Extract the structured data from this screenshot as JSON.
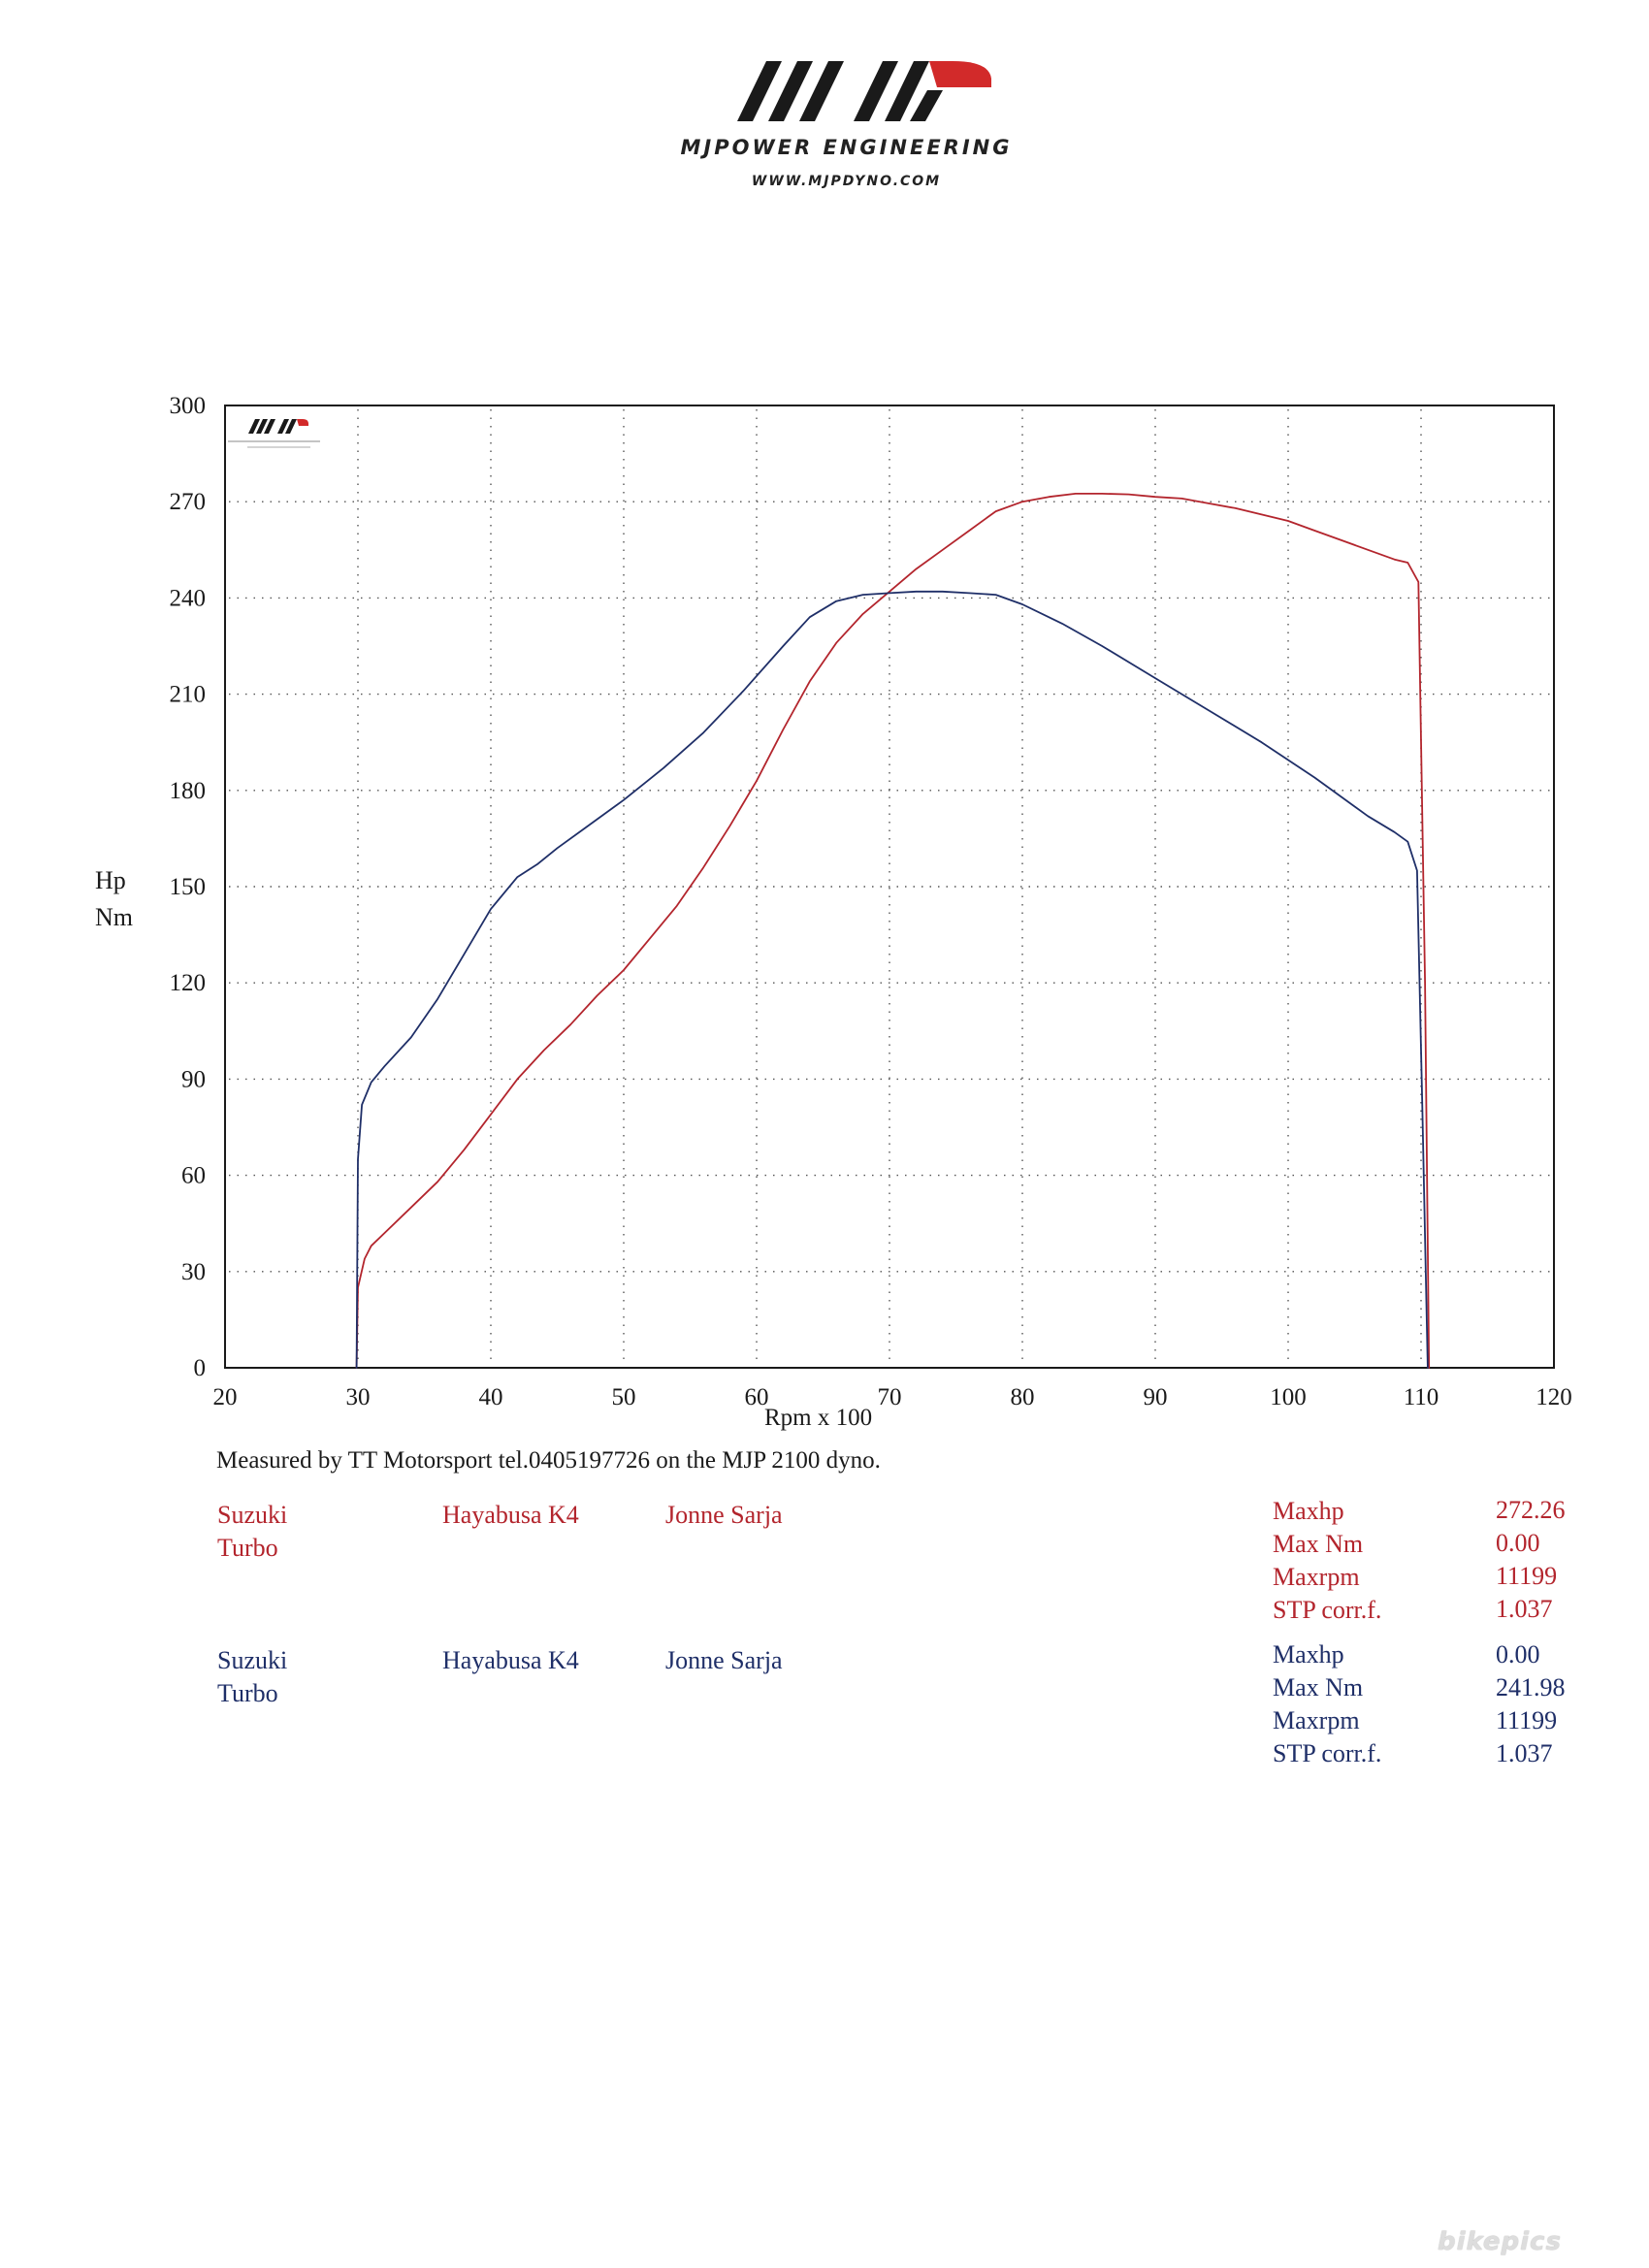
{
  "header": {
    "brand_name": "MJPOWER ENGINEERING",
    "url": "WWW.MJPDYNO.COM"
  },
  "chart_data": {
    "type": "line",
    "xlabel": "Rpm x 100",
    "ylabel": [
      "Hp",
      "Nm"
    ],
    "xlim": [
      20,
      120
    ],
    "ylim": [
      0,
      300
    ],
    "x_ticks": [
      20,
      30,
      40,
      50,
      60,
      70,
      80,
      90,
      100,
      110,
      120
    ],
    "y_ticks": [
      0,
      30,
      60,
      90,
      120,
      150,
      180,
      210,
      240,
      270,
      300
    ],
    "grid": true,
    "series": [
      {
        "color": "#b3252d",
        "x": [
          29.9,
          30,
          30.5,
          31,
          32,
          34,
          36,
          38,
          40,
          42,
          44,
          46,
          48,
          50,
          52,
          54,
          56,
          58,
          60,
          62,
          64,
          66,
          68,
          70,
          72,
          74,
          76,
          78,
          80,
          82,
          84,
          86,
          88,
          90,
          92,
          94,
          96,
          98,
          100,
          102,
          104,
          106,
          108,
          109,
          109.8,
          110.3,
          110.6
        ],
        "y": [
          0,
          25,
          34,
          38,
          42,
          50,
          58,
          68,
          79,
          90,
          99,
          107,
          116,
          124,
          134,
          144,
          156,
          169,
          183,
          199,
          214,
          226,
          235,
          242,
          249,
          255,
          261,
          267,
          270,
          271.5,
          272.5,
          272.5,
          272.3,
          271.5,
          271,
          269.5,
          268,
          266,
          264,
          261,
          258,
          255,
          252,
          251,
          245,
          120,
          0
        ]
      },
      {
        "color": "#1f2f68",
        "x": [
          29.9,
          30,
          30.3,
          31,
          32,
          34,
          36,
          38,
          40,
          42,
          43.5,
          45,
          47,
          50,
          53,
          56,
          59,
          62,
          64,
          66,
          68,
          70,
          72,
          74,
          76,
          78,
          80,
          83,
          86,
          90,
          94,
          98,
          102,
          106,
          108,
          109,
          109.7,
          110.1,
          110.5
        ],
        "y": [
          0,
          65,
          82,
          89,
          94,
          103,
          115,
          129,
          143,
          153,
          157,
          162,
          168,
          177,
          187,
          198,
          211,
          225,
          234,
          239,
          241,
          241.5,
          242,
          242,
          241.5,
          241,
          238,
          232,
          225,
          215,
          205,
          195,
          184,
          172,
          167,
          164,
          155,
          80,
          0
        ]
      }
    ]
  },
  "measured_note": "Measured by TT Motorsport tel.0405197726 on the MJP 2100 dyno.",
  "run_red": {
    "make": "Suzuki",
    "variant": "Turbo",
    "model": "Hayabusa K4",
    "owner": "Jonne Sarja",
    "stats": [
      {
        "label": "Maxhp",
        "value": "272.26"
      },
      {
        "label": "Max Nm",
        "value": "0.00"
      },
      {
        "label": "Maxrpm",
        "value": "11199"
      },
      {
        "label": "STP corr.f.",
        "value": "1.037"
      }
    ]
  },
  "run_blue": {
    "make": "Suzuki",
    "variant": "Turbo",
    "model": "Hayabusa K4",
    "owner": "Jonne Sarja",
    "stats": [
      {
        "label": "Maxhp",
        "value": "0.00"
      },
      {
        "label": "Max Nm",
        "value": "241.98"
      },
      {
        "label": "Maxrpm",
        "value": "11199"
      },
      {
        "label": "STP corr.f.",
        "value": "1.037"
      }
    ]
  },
  "watermark": "bikepics"
}
